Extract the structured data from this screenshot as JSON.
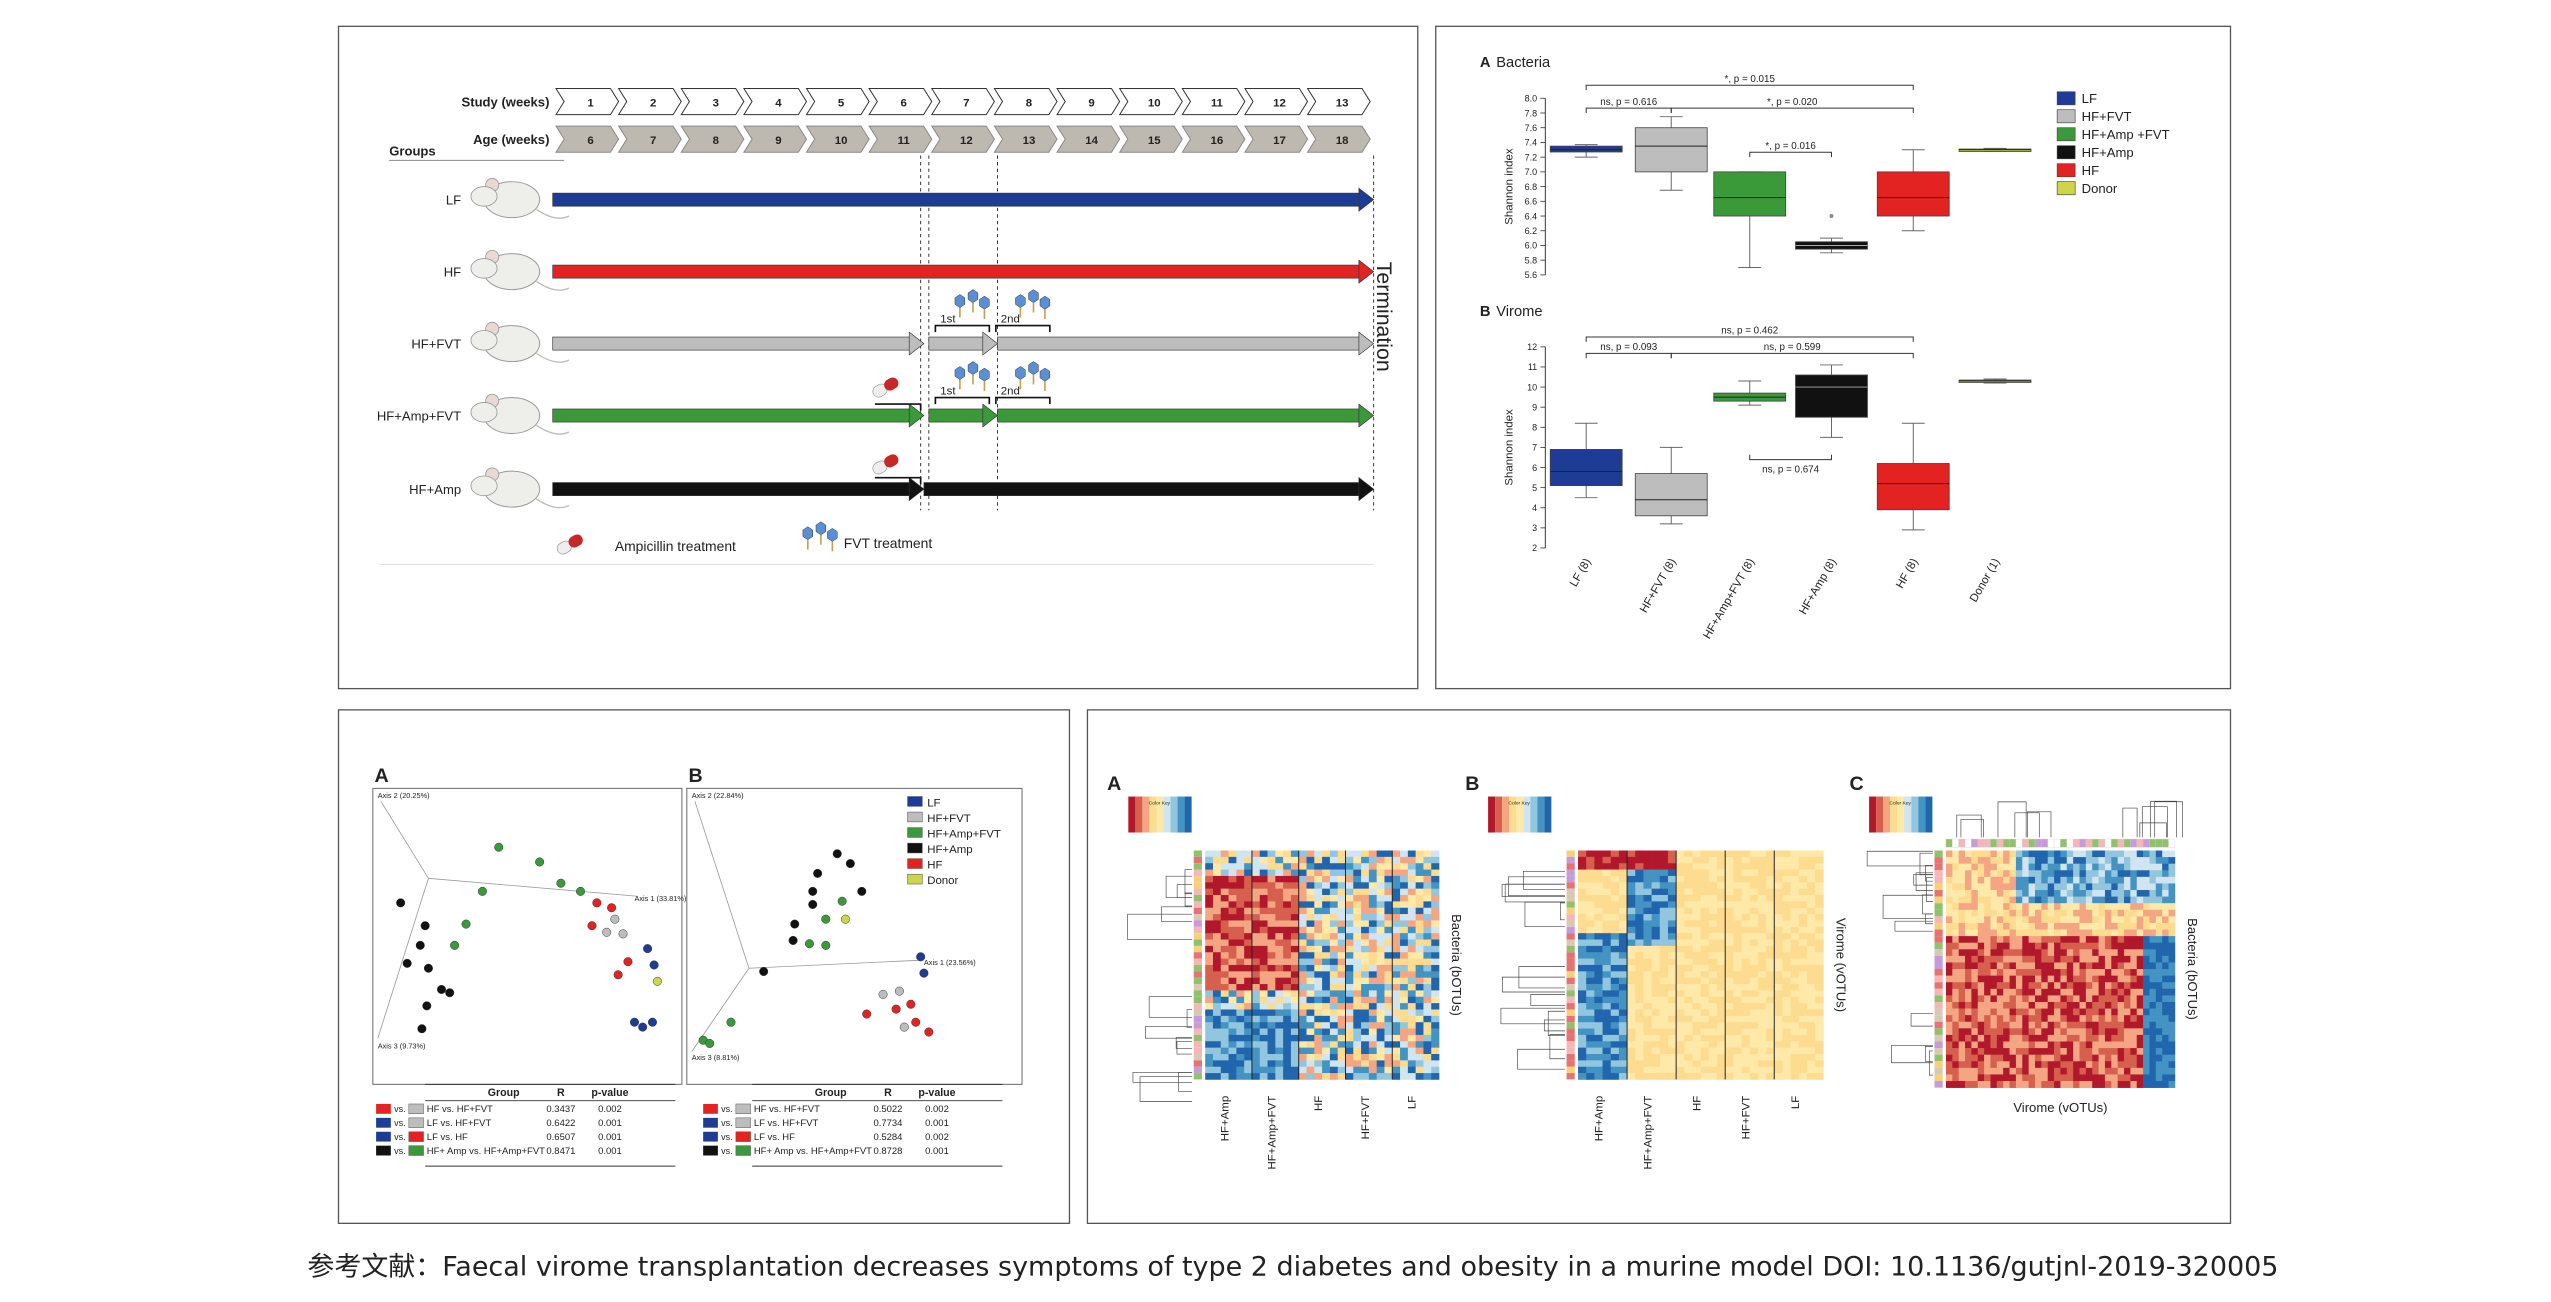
{
  "timeline": {
    "study_label": "Study (weeks)",
    "age_label": "Age (weeks)",
    "groups_label": "Groups",
    "study_weeks": [
      1,
      2,
      3,
      4,
      5,
      6,
      7,
      8,
      9,
      10,
      11,
      12,
      13
    ],
    "age_weeks": [
      6,
      7,
      8,
      9,
      10,
      11,
      12,
      13,
      14,
      15,
      16,
      17,
      18
    ],
    "groups": [
      "LF",
      "HF",
      "HF+FVT",
      "HF+Amp+FVT",
      "HF+Amp"
    ],
    "doses": [
      "1st",
      "2nd"
    ],
    "termination": "Termination",
    "legend": [
      "Ampicillin treatment",
      "FVT treatment"
    ]
  },
  "diversity": {
    "ylabel": "Shannon index",
    "categories": [
      "LF (8)",
      "HF+FVT (8)",
      "HF+Amp+FVT (8)",
      "HF+Amp (8)",
      "HF (8)",
      "Donor (1)"
    ],
    "legend": [
      "LF",
      "HF+FVT",
      "HF+Amp +FVT",
      "HF+Amp",
      "HF",
      "Donor"
    ],
    "colors": [
      "#1e3c96",
      "#bdbdbd",
      "#3a9a3a",
      "#111111",
      "#e32222",
      "#cdd64a"
    ],
    "bacteria": {
      "letter": "A",
      "title": "Bacteria",
      "ylim": [
        5.6,
        8.0
      ],
      "yticks": [
        5.6,
        5.8,
        {
          "value": 6.0,
          "label": "6.0"
        },
        6.2,
        6.4,
        6.6,
        6.8,
        {
          "value": 7.0,
          "label": "7.0"
        },
        7.2,
        7.4,
        7.6,
        7.8,
        {
          "value": 8.0,
          "label": "8.0"
        }
      ],
      "boxes": [
        {
          "min": 7.2,
          "q1": 7.27,
          "median": 7.3,
          "q3": 7.35,
          "max": 7.37
        },
        {
          "min": 6.75,
          "q1": 7.0,
          "median": 7.35,
          "q3": 7.6,
          "max": 7.75
        },
        {
          "min": 5.7,
          "q1": 6.4,
          "median": 6.65,
          "q3": 7.0,
          "max": 7.0
        },
        {
          "min": 5.9,
          "q1": 5.95,
          "median": 6.0,
          "q3": 6.05,
          "max": 6.1,
          "outliers": [
            6.4
          ]
        },
        {
          "min": 6.2,
          "q1": 6.4,
          "median": 6.65,
          "q3": 7.0,
          "max": 7.3
        },
        {
          "min": 7.28,
          "q1": 7.29,
          "median": 7.3,
          "q3": 7.31,
          "max": 7.32
        }
      ],
      "annotations": [
        "*, p = 0.015",
        "ns, p = 0.616",
        "*, p = 0.020",
        "*, p = 0.016"
      ]
    },
    "virome": {
      "letter": "B",
      "title": "Virome",
      "ylim": [
        2,
        12
      ],
      "yticks": [
        2,
        3,
        4,
        5,
        6,
        7,
        8,
        9,
        10,
        11,
        12
      ],
      "boxes": [
        {
          "min": 4.5,
          "q1": 5.1,
          "median": 5.8,
          "q3": 6.9,
          "max": 8.2
        },
        {
          "min": 3.2,
          "q1": 3.6,
          "median": 4.4,
          "q3": 5.7,
          "max": 7.0
        },
        {
          "min": 9.1,
          "q1": 9.3,
          "median": 9.5,
          "q3": 9.7,
          "max": 10.3
        },
        {
          "min": 7.5,
          "q1": 8.5,
          "median": 10.0,
          "q3": 10.6,
          "max": 11.1
        },
        {
          "min": 2.9,
          "q1": 3.9,
          "median": 5.2,
          "q3": 6.2,
          "max": 8.2
        },
        {
          "min": 10.2,
          "q1": 10.25,
          "median": 10.3,
          "q3": 10.35,
          "max": 10.4
        }
      ],
      "annotations": [
        "ns, p = 0.462",
        "ns, p = 0.093",
        "ns, p = 0.599",
        "ns, p = 0.674"
      ]
    }
  },
  "pcoa": {
    "legend": [
      "LF",
      "HF+FVT",
      "HF+Amp+FVT",
      "HF+Amp",
      "HF",
      "Donor"
    ],
    "header": [
      "Group",
      "R",
      "p-value"
    ],
    "vs": "vs.",
    "panels": [
      {
        "letter": "A",
        "axes": [
          "Axis 2 (20.25%)",
          "Axis 1 (33.81%)",
          "Axis 3 (9.73%)"
        ],
        "rows": [
          [
            "HF vs. HF+FVT",
            "0.3437",
            "0.002"
          ],
          [
            "LF vs. HF+FVT",
            "0.6422",
            "0.001"
          ],
          [
            "LF vs. HF",
            "0.6507",
            "0.001"
          ],
          [
            "HF+ Amp vs. HF+Amp+FVT",
            "0.8471",
            "0.001"
          ]
        ]
      },
      {
        "letter": "B",
        "axes": [
          "Axis 2 (22.84%)",
          "Axis 1 (23.56%)",
          "Axis 3 (8.81%)"
        ],
        "rows": [
          [
            "HF vs. HF+FVT",
            "0.5022",
            "0.002"
          ],
          [
            "LF vs. HF+FVT",
            "0.7734",
            "0.001"
          ],
          [
            "LF vs. HF",
            "0.5284",
            "0.002"
          ],
          [
            "HF+ Amp vs. HF+Amp+FVT",
            "0.8728",
            "0.001"
          ]
        ]
      }
    ]
  },
  "heatmaps": {
    "color_key": "Color Key",
    "panels": [
      {
        "letter": "A",
        "side": "Bacteria (bOTUs)",
        "columns": [
          "HF+Amp",
          "HF+Amp+FVT",
          "HF",
          "HF+FVT",
          "LF"
        ]
      },
      {
        "letter": "B",
        "side": "Virome (vOTUs)",
        "columns": [
          "HF+Amp",
          "HF+Amp+FVT",
          "HF",
          "HF+FVT",
          "LF"
        ]
      },
      {
        "letter": "C",
        "side": "Bacteria (bOTUs)",
        "bottom": "Virome (vOTUs)"
      }
    ]
  },
  "caption": "参考文献：Faecal virome transplantation decreases symptoms of type 2 diabetes and obesity in a murine model  DOI: 10.1136/gutjnl-2019-320005"
}
